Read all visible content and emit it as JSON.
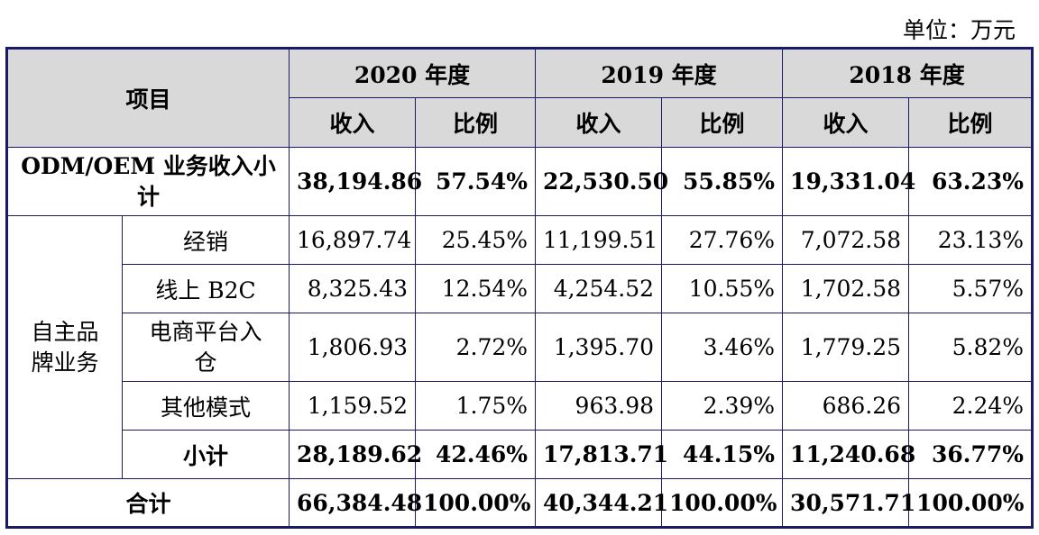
{
  "unit_label": "单位：万元",
  "header": {
    "item": "项目",
    "years": [
      "2020 年度",
      "2019 年度",
      "2018 年度"
    ],
    "revenue": "收入",
    "ratio": "比例"
  },
  "odm": {
    "label": "ODM/OEM 业务收入小计",
    "values": [
      "38,194.86",
      "57.54%",
      "22,530.50",
      "55.85%",
      "19,331.04",
      "63.23%"
    ]
  },
  "own_brand": {
    "label": "自主品牌业务",
    "rows": [
      {
        "label": "经销",
        "values": [
          "16,897.74",
          "25.45%",
          "11,199.51",
          "27.76%",
          "7,072.58",
          "23.13%"
        ]
      },
      {
        "label": "线上 B2C",
        "values": [
          "8,325.43",
          "12.54%",
          "4,254.52",
          "10.55%",
          "1,702.58",
          "5.57%"
        ]
      },
      {
        "label": "电商平台入仓",
        "values": [
          "1,806.93",
          "2.72%",
          "1,395.70",
          "3.46%",
          "1,779.25",
          "5.82%"
        ]
      },
      {
        "label": "其他模式",
        "values": [
          "1,159.52",
          "1.75%",
          "963.98",
          "2.39%",
          "686.26",
          "2.24%"
        ]
      }
    ],
    "subtotal": {
      "label": "小计",
      "values": [
        "28,189.62",
        "42.46%",
        "17,813.71",
        "44.15%",
        "11,240.68",
        "36.77%"
      ]
    }
  },
  "total": {
    "label": "合计",
    "values": [
      "66,384.48",
      "100.00%",
      "40,344.21",
      "100.00%",
      "30,571.71",
      "100.00%"
    ]
  }
}
